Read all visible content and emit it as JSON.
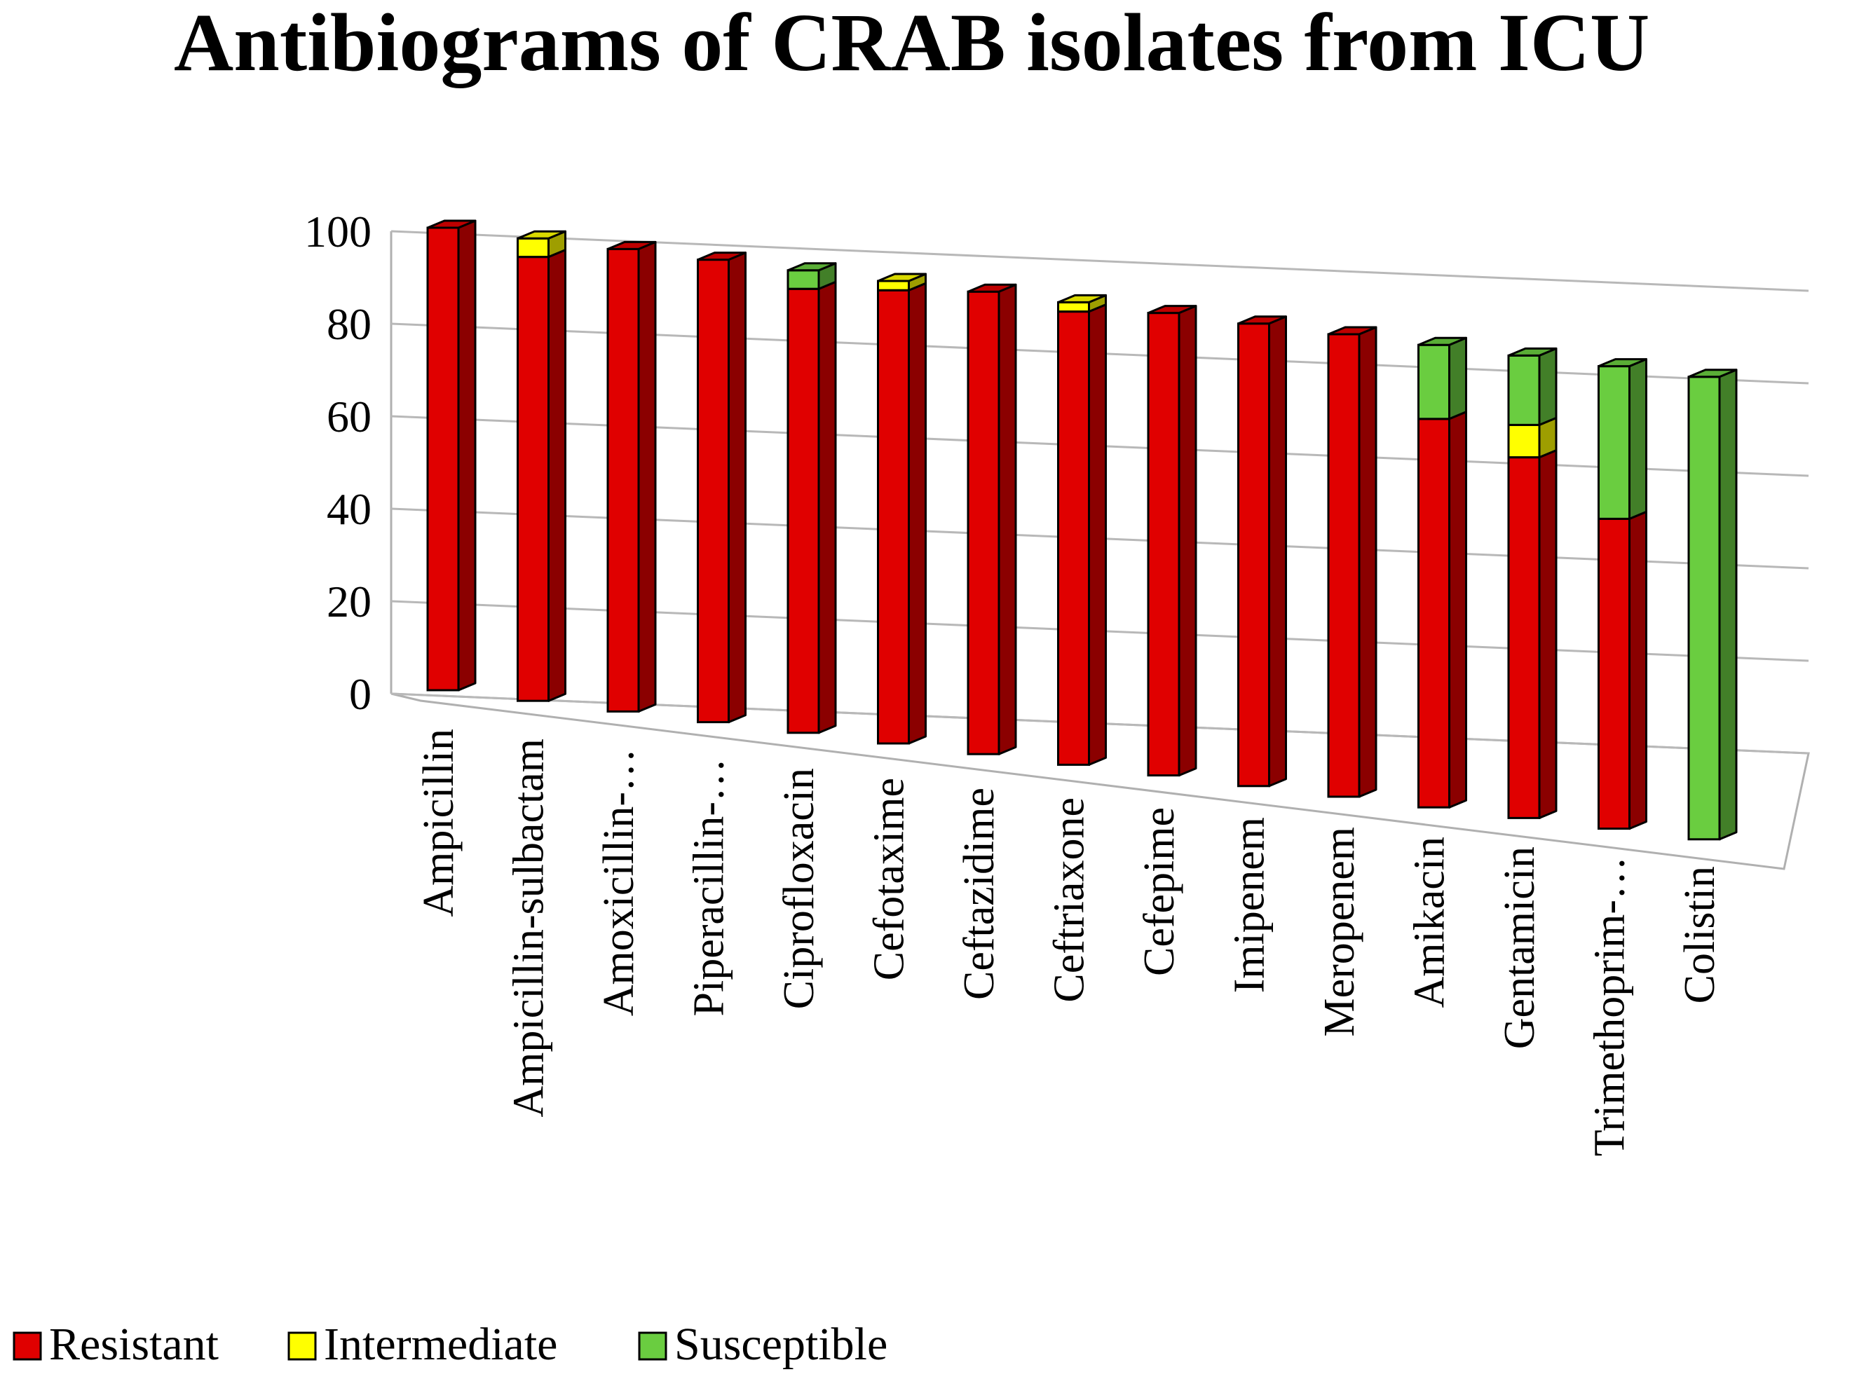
{
  "chart_data": {
    "type": "bar",
    "stacked": true,
    "style": "3d-stacked-column",
    "title": "Antibiograms of CRAB isolates from ICU",
    "xlabel": "",
    "ylabel": "",
    "ylim": [
      0,
      100
    ],
    "yticks": [
      0,
      20,
      40,
      60,
      80,
      100
    ],
    "grid": true,
    "legend_position": "bottom-left",
    "categories": [
      "Ampicillin",
      "Ampicillin-sulbactam",
      "Amoxicillin-…",
      "Piperacillin-…",
      "Ciprofloxacin",
      "Cefotaxime",
      "Ceftazidime",
      "Ceftriaxone",
      "Cefepime",
      "Imipenem",
      "Meropenem",
      "Amikacin",
      "Gentamicin",
      "Trimethoprim-…",
      "Colistin"
    ],
    "series": [
      {
        "name": "Resistant",
        "color": "#e00000",
        "values": [
          100,
          96,
          100,
          100,
          96,
          98,
          100,
          98,
          100,
          100,
          100,
          84,
          78,
          67,
          0
        ]
      },
      {
        "name": "Intermediate",
        "color": "#ffff00",
        "values": [
          0,
          4,
          0,
          0,
          0,
          2,
          0,
          2,
          0,
          0,
          0,
          0,
          7,
          0,
          0
        ]
      },
      {
        "name": "Susceptible",
        "color": "#6acd40",
        "values": [
          0,
          0,
          0,
          0,
          4,
          0,
          0,
          0,
          0,
          0,
          0,
          16,
          15,
          33,
          100
        ]
      }
    ]
  }
}
